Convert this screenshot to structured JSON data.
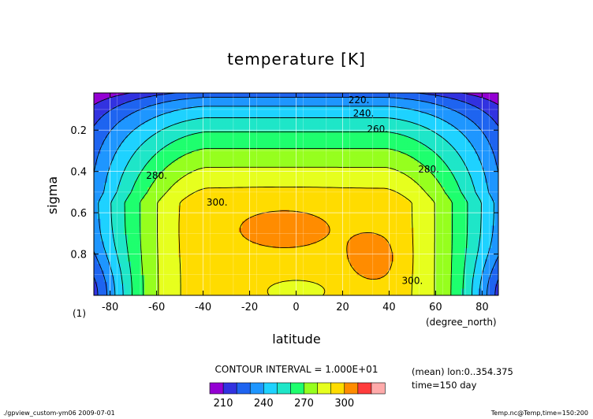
{
  "chart_data": {
    "type": "contour",
    "title": "temperature [K]",
    "xlabel": "latitude",
    "ylabel": "sigma",
    "x_unit": "(degree_north)",
    "y_unit": "(1)",
    "xlim": [
      -87,
      87
    ],
    "ylim": [
      1.0,
      0.02
    ],
    "y_inverted": true,
    "grid": true,
    "x_ticks": [
      {
        "value": -80,
        "label": "-80"
      },
      {
        "value": -60,
        "label": "-60"
      },
      {
        "value": -40,
        "label": "-40"
      },
      {
        "value": -20,
        "label": "-20"
      },
      {
        "value": 0,
        "label": "0"
      },
      {
        "value": 20,
        "label": "20"
      },
      {
        "value": 40,
        "label": "40"
      },
      {
        "value": 60,
        "label": "60"
      },
      {
        "value": 80,
        "label": "80"
      }
    ],
    "y_ticks": [
      {
        "value": 0.2,
        "label": "0.2"
      },
      {
        "value": 0.4,
        "label": "0.4"
      },
      {
        "value": 0.6,
        "label": "0.6"
      },
      {
        "value": 0.8,
        "label": "0.8"
      }
    ],
    "levels": [
      210,
      220,
      230,
      240,
      250,
      260,
      270,
      280,
      290,
      300,
      310
    ],
    "fill_colors": [
      "#9400d3",
      "#3232e0",
      "#1e64f0",
      "#1e96ff",
      "#1ed2ff",
      "#1ee6c8",
      "#1eff6e",
      "#96ff1e",
      "#e6ff1e",
      "#ffdc00",
      "#ff8c00",
      "#ff3c3c",
      "#ffaaaa"
    ],
    "contour_labels": [
      {
        "text": "220.",
        "lat": 27,
        "sigma": 0.055
      },
      {
        "text": "240.",
        "lat": 29,
        "sigma": 0.12
      },
      {
        "text": "260.",
        "lat": 35,
        "sigma": 0.195
      },
      {
        "text": "280.",
        "lat": -60,
        "sigma": 0.42
      },
      {
        "text": "280.",
        "lat": 57,
        "sigma": 0.39
      },
      {
        "text": "300.",
        "lat": -34,
        "sigma": 0.55
      },
      {
        "text": "300.",
        "lat": 50,
        "sigma": 0.93
      }
    ],
    "colorbar": {
      "tick_labels": [
        {
          "value": 210,
          "label": "210"
        },
        {
          "value": 240,
          "label": "240"
        },
        {
          "value": 270,
          "label": "270"
        },
        {
          "value": 300,
          "label": "300"
        }
      ]
    },
    "annotations": {
      "contour_interval": "CONTOUR INTERVAL = 1.000E+01",
      "mean_info": "(mean) lon:0..354.375",
      "time_info": "time=150 day",
      "footer_left": "./gpview_custom-ym06  2009-07-01",
      "footer_right": "Temp.nc@Temp,time=150:200"
    }
  }
}
